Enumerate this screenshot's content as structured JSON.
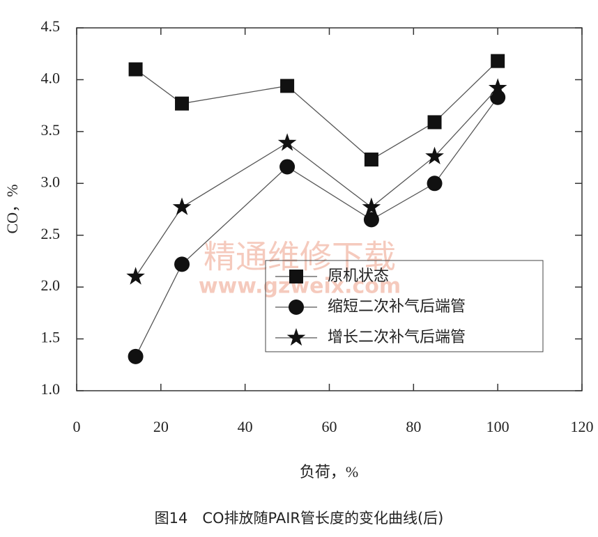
{
  "chart_data": {
    "type": "line",
    "x_label": "负荷，%",
    "y_label": "CO，%",
    "caption": "图14　CO排放随PAIR管长度的变化曲线(后)",
    "watermark": [
      "精通维修下载",
      "www.gzweix.com"
    ],
    "x": [
      14,
      25,
      50,
      70,
      85,
      100
    ],
    "series": [
      {
        "name": "原机状态",
        "color": "#111111",
        "marker": "square",
        "values": [
          4.1,
          3.77,
          3.94,
          3.23,
          3.59,
          4.18
        ]
      },
      {
        "name": "缩短二次补气后端管",
        "color": "#111111",
        "marker": "circle",
        "values": [
          1.33,
          2.22,
          3.16,
          2.65,
          3.0,
          3.83
        ]
      },
      {
        "name": "增长二次补气后端管",
        "color": "#111111",
        "marker": "star",
        "values": [
          2.1,
          2.77,
          3.39,
          2.77,
          3.26,
          3.92
        ]
      }
    ],
    "xlim": [
      0,
      120
    ],
    "xticks": [
      0,
      20,
      40,
      60,
      80,
      100,
      120
    ],
    "ylim": [
      1.0,
      4.5
    ],
    "yticks": [
      {
        "value": 1.0,
        "label": "1.0"
      },
      1.5,
      {
        "value": 2.0,
        "label": "2.0"
      },
      2.5,
      {
        "value": 3.0,
        "label": "3.0"
      },
      3.5,
      {
        "value": 4.0,
        "label": "4.0"
      },
      4.5
    ],
    "legend": "lower right"
  }
}
